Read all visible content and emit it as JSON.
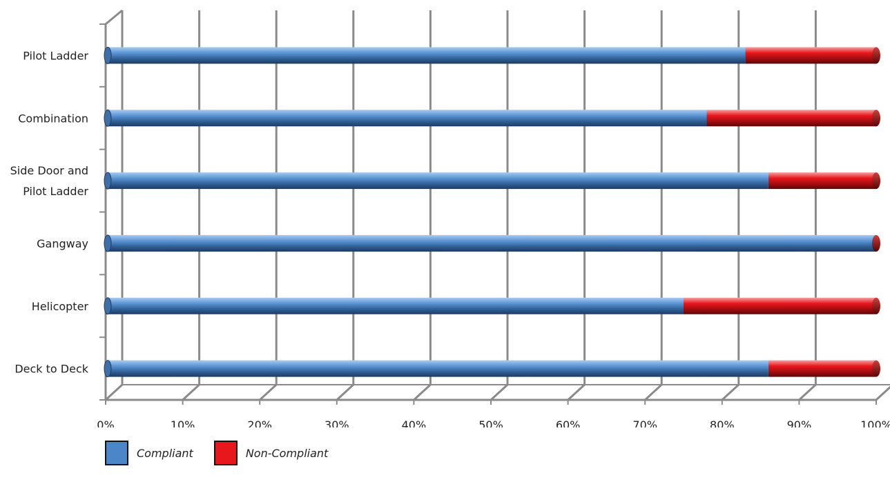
{
  "chart_data": {
    "type": "bar",
    "orientation": "horizontal",
    "stacked": true,
    "stack_mode": "percent",
    "categories": [
      "Pilot Ladder",
      "Combination",
      "Side Door and Pilot Ladder",
      "Gangway",
      "Helicopter",
      "Deck to Deck"
    ],
    "category_lines": [
      [
        "Pilot Ladder"
      ],
      [
        "Combination"
      ],
      [
        "Side Door and",
        "Pilot Ladder"
      ],
      [
        "Gangway"
      ],
      [
        "Helicopter"
      ],
      [
        "Deck to Deck"
      ]
    ],
    "series": [
      {
        "name": "Compliant",
        "color": "#4a86c8",
        "values": [
          83,
          78,
          86,
          100,
          75,
          86
        ]
      },
      {
        "name": "Non-Compliant",
        "color": "#e8171c",
        "values": [
          17,
          22,
          14,
          0,
          25,
          14
        ]
      }
    ],
    "xticks": [
      "0%",
      "10%",
      "20%",
      "30%",
      "40%",
      "50%",
      "60%",
      "70%",
      "80%",
      "90%",
      "100%"
    ],
    "xlim": [
      0,
      100
    ],
    "title": "",
    "xlabel": "",
    "ylabel": "",
    "grid": true,
    "legend_position": "bottom-left"
  }
}
